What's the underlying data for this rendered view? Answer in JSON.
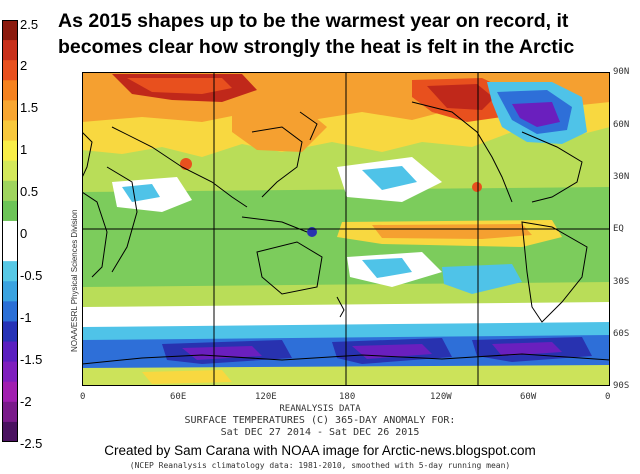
{
  "headline": {
    "line1": "As 2015 shapes up to be the warmest year on record, it",
    "line2": "becomes clear how strongly the heat is felt in the Arctic"
  },
  "colorbar": {
    "labels": [
      "2.5",
      "2",
      "1.5",
      "1",
      "0.5",
      "0",
      "-0.5",
      "-1",
      "-1.5",
      "-2",
      "-2.5"
    ],
    "colors": [
      "#8b1a0e",
      "#c8301b",
      "#e8501e",
      "#f5821f",
      "#f8a631",
      "#f8c83c",
      "#f9ee48",
      "#d4e85a",
      "#9fd55e",
      "#6cc457",
      "#ffffff",
      "#ffffff",
      "#57c9e6",
      "#3aa3e0",
      "#2b6fd6",
      "#2632b6",
      "#5a1fc0",
      "#7f1fbe",
      "#a11fb0",
      "#7a1b8a",
      "#4a1260"
    ]
  },
  "map": {
    "lat_labels": [
      "90N",
      "60N",
      "30N",
      "EQ",
      "30S",
      "60S",
      "90S"
    ],
    "lon_labels": [
      "0",
      "60E",
      "120E",
      "180",
      "120W",
      "60W",
      "0"
    ],
    "side_credit": "NOAA/ESRL Physical Sciences Division",
    "palette": {
      "deep_red": "#c0281a",
      "red": "#e8501e",
      "orange": "#f5a030",
      "yellow": "#f8d840",
      "yellow_green": "#cce35a",
      "green": "#7ccc5c",
      "white": "#ffffff",
      "cyan": "#4fc3e8",
      "blue": "#2e6fd8",
      "navy": "#2832b0",
      "purple": "#6a1fbe"
    }
  },
  "captions": {
    "reanalysis": "REANALYSIS DATA",
    "variable": "SURFACE TEMPERATURES (C)   365-DAY ANOMALY FOR:",
    "period": "Sat DEC 27 2014 - Sat DEC 26 2015"
  },
  "credits": {
    "main": "Created by Sam Carana with NOAA image for Arctic-news.blogspot.com",
    "footnote": "(NCEP Reanalysis climatology data: 1981-2010, smoothed with 5-day running mean)"
  }
}
